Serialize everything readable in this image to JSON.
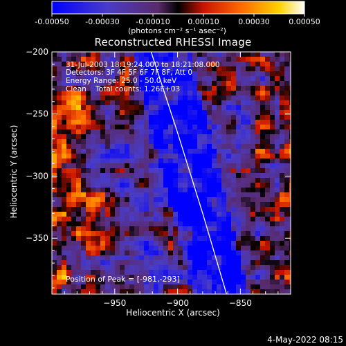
{
  "colorbar": {
    "tick_labels": [
      "-0.00050",
      "-0.00030",
      "-0.00010",
      "0.00010",
      "0.00030",
      "0.00050"
    ],
    "units": "(photons cm⁻² s⁻¹ asec⁻²)",
    "range": [
      -0.0005,
      0.0005
    ]
  },
  "chart_data": {
    "type": "heatmap",
    "title": "Reconstructed RHESSI Image",
    "xlabel": "Heliocentric X (arcsec)",
    "ylabel": "Heliocentric Y (arcsec)",
    "xlim": [
      -1000,
      -810
    ],
    "ylim": [
      -395,
      -200
    ],
    "x_ticks": [
      -950,
      -900,
      -850
    ],
    "y_ticks": [
      -200,
      -250,
      -300,
      -350
    ],
    "x_tick_labels": [
      "−950",
      "−900",
      "−850"
    ],
    "y_tick_labels": [
      "−200",
      "−250",
      "−300",
      "−350"
    ],
    "annotations": {
      "time": "31-Jul-2003 18:19:24.000 to 18:21:08.000",
      "detectors": "Detectors: 3F 4F 5F 6F 7F 8F, Att 0",
      "energy": "Energy Range: 25.0 - 50.0 keV",
      "clean": "Clean    Total counts: 1.26E+03",
      "peak": "Position of Peak = [-981,-293]"
    },
    "limb_curve": [
      [
        -921,
        -200
      ],
      [
        -900,
        -265
      ],
      [
        -880,
        -330
      ],
      [
        -861,
        -395
      ]
    ],
    "colormap": "rainbow (blue → purple → black → red → orange → yellow → white)"
  },
  "footer": {
    "date": "4-May-2022 08:15"
  }
}
